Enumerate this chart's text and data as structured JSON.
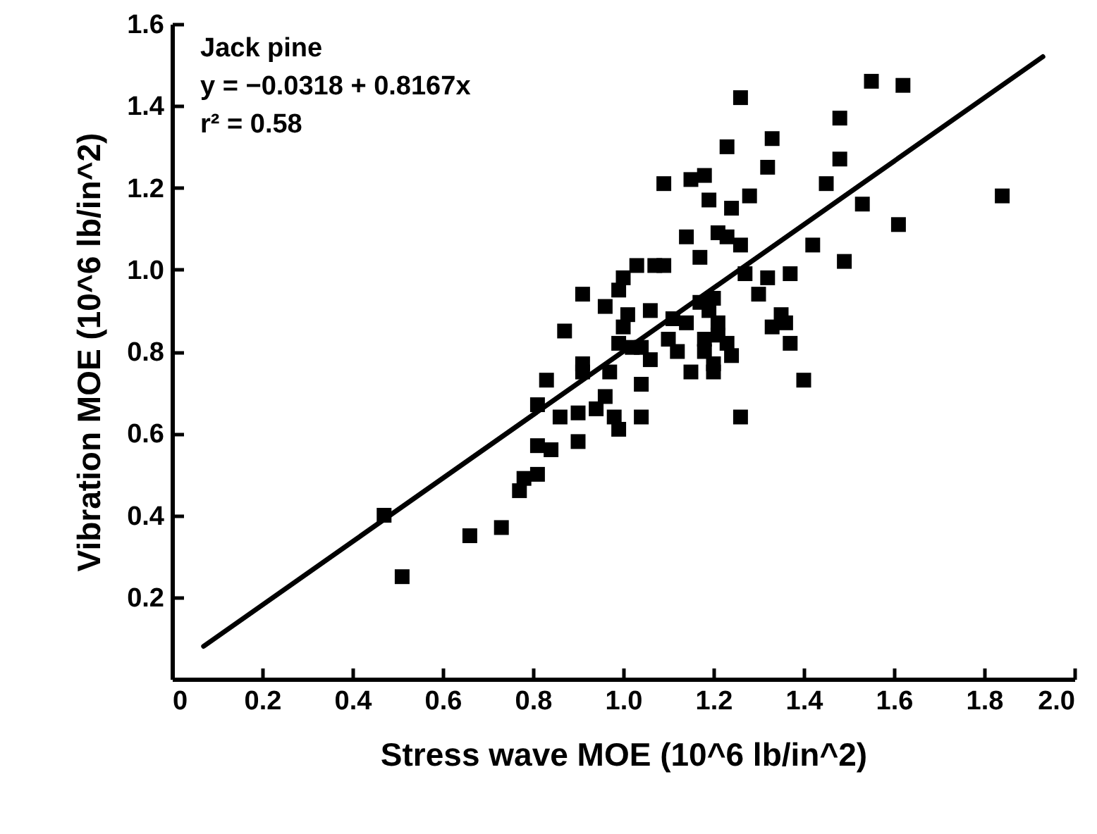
{
  "chart_data": {
    "type": "scatter",
    "xlabel": "Stress wave MOE (10^6 lb/in^2)",
    "ylabel": "Vibration MOE (10^6 lb/in^2)",
    "annotations": [
      "Jack pine",
      "y = −0.0318 + 0.8167x",
      "r² = 0.58"
    ],
    "xlim": [
      0,
      2.0
    ],
    "ylim": [
      0,
      1.6
    ],
    "xticks": [
      0,
      0.2,
      0.4,
      0.6,
      0.8,
      {
        "value": 1,
        "label": "1.0"
      },
      1.2,
      1.4,
      1.6,
      1.8,
      {
        "value": 2,
        "label": "2.0"
      }
    ],
    "yticks": [
      0.2,
      0.4,
      0.6,
      0.8,
      {
        "value": 1,
        "label": "1.0"
      },
      1.2,
      1.4,
      1.6
    ],
    "grid": false,
    "marker": "square",
    "series": [
      {
        "type": "scatter",
        "color": "#000000",
        "x": [
          0.47,
          0.51,
          0.66,
          0.73,
          0.77,
          0.78,
          0.81,
          0.81,
          0.84,
          0.81,
          0.83,
          0.86,
          0.87,
          0.9,
          0.9,
          0.91,
          0.91,
          0.91,
          0.94,
          0.96,
          0.96,
          0.97,
          0.98,
          0.99,
          0.99,
          0.99,
          1.0,
          1.0,
          1.01,
          1.02,
          1.03,
          1.04,
          1.04,
          1.04,
          1.06,
          1.06,
          1.07,
          1.09,
          1.09,
          1.1,
          1.11,
          1.12,
          1.14,
          1.14,
          1.15,
          1.15,
          1.17,
          1.17,
          1.18,
          1.18,
          1.18,
          1.19,
          1.19,
          1.2,
          1.2,
          1.2,
          1.21,
          1.21,
          1.21,
          1.23,
          1.23,
          1.23,
          1.24,
          1.24,
          1.26,
          1.26,
          1.27,
          1.28,
          1.26,
          1.3,
          1.32,
          1.32,
          1.33,
          1.33,
          1.35,
          1.36,
          1.37,
          1.4,
          1.42,
          1.45,
          1.48,
          1.48,
          1.49,
          1.53,
          1.55,
          1.61,
          1.62,
          1.84,
          1.37
        ],
        "values": [
          0.4,
          0.25,
          0.35,
          0.37,
          0.46,
          0.49,
          0.5,
          0.57,
          0.56,
          0.67,
          0.73,
          0.64,
          0.85,
          0.58,
          0.65,
          0.75,
          0.94,
          0.77,
          0.66,
          0.69,
          0.91,
          0.75,
          0.64,
          0.61,
          0.82,
          0.95,
          0.86,
          0.98,
          0.89,
          0.81,
          1.01,
          0.72,
          0.64,
          0.81,
          0.9,
          0.78,
          1.01,
          1.21,
          1.01,
          0.83,
          0.88,
          0.8,
          1.08,
          0.87,
          0.75,
          1.22,
          0.92,
          1.03,
          1.23,
          0.83,
          0.8,
          1.17,
          0.9,
          0.77,
          0.93,
          0.75,
          0.87,
          0.84,
          1.09,
          1.3,
          1.08,
          0.82,
          0.79,
          1.15,
          0.64,
          1.42,
          0.99,
          1.18,
          1.06,
          0.94,
          0.98,
          1.25,
          1.32,
          0.86,
          0.89,
          0.87,
          0.82,
          0.73,
          1.06,
          1.21,
          1.27,
          1.37,
          1.02,
          1.16,
          1.46,
          1.11,
          1.45,
          1.18,
          0.99
        ]
      },
      {
        "type": "line",
        "color": "#000000",
        "line_style": "solid",
        "marker": "none",
        "x": [
          0.07,
          1.93
        ],
        "values": [
          0.08,
          1.52
        ]
      }
    ]
  }
}
